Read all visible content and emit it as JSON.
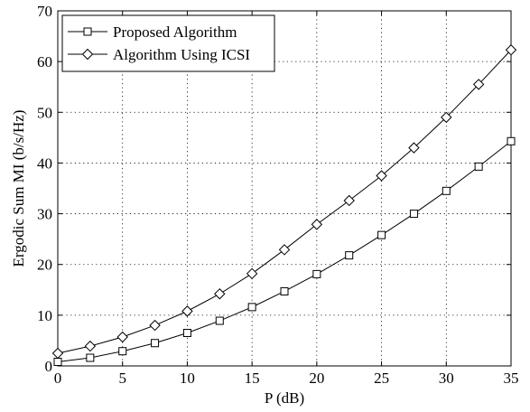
{
  "chart_data": {
    "type": "line",
    "xlabel": "P (dB)",
    "ylabel": "Ergodic Sum MI (b/s/Hz)",
    "xlim": [
      0,
      35
    ],
    "ylim": [
      0,
      70
    ],
    "xticks": [
      0,
      5,
      10,
      15,
      20,
      25,
      30,
      35
    ],
    "yticks": [
      0,
      10,
      20,
      30,
      40,
      50,
      60,
      70
    ],
    "grid": true,
    "legend_position": "top-left",
    "x": [
      0,
      2.5,
      5,
      7.5,
      10,
      12.5,
      15,
      17.5,
      20,
      22.5,
      25,
      27.5,
      30,
      32.5,
      35
    ],
    "series": [
      {
        "name": "Proposed Algorithm",
        "marker": "square",
        "values": [
          0.8,
          1.6,
          2.9,
          4.5,
          6.5,
          8.9,
          11.6,
          14.7,
          18.1,
          21.8,
          25.8,
          30.0,
          34.5,
          39.3,
          44.3
        ]
      },
      {
        "name": "Algorithm Using ICSI",
        "marker": "diamond",
        "values": [
          2.5,
          3.9,
          5.7,
          8.0,
          10.8,
          14.2,
          18.2,
          22.9,
          27.9,
          32.6,
          37.5,
          43.0,
          49.0,
          55.5,
          62.3
        ]
      }
    ]
  }
}
